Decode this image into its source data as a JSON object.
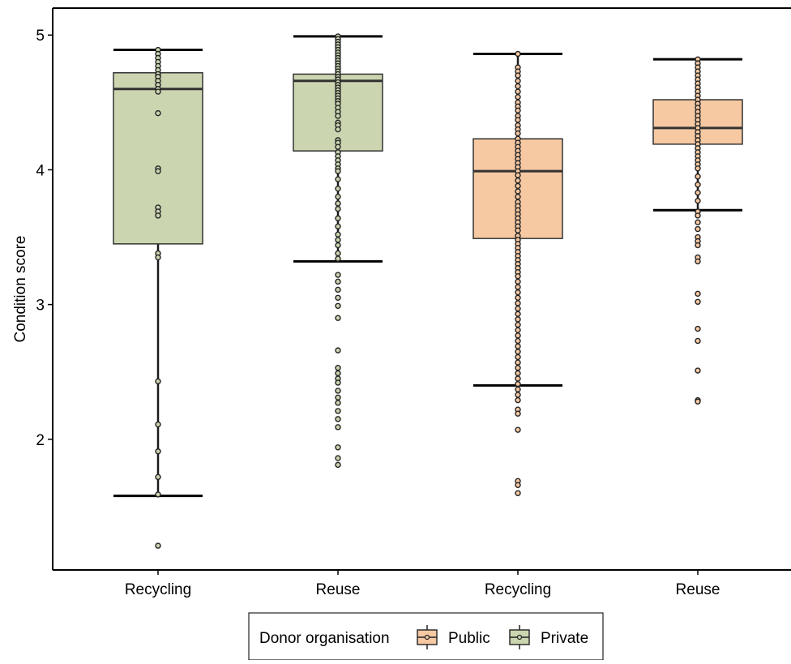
{
  "chart_data": {
    "type": "box",
    "title": "",
    "xlabel": "",
    "ylabel": "Condition score",
    "ylim": [
      1.03,
      5.2
    ],
    "yticks": [
      2,
      3,
      4,
      5
    ],
    "grid": false,
    "legend_position": "bottom",
    "legend_title": "Donor organisation",
    "legend_entries": [
      {
        "label": "Public",
        "color": "#f6c9a3"
      },
      {
        "label": "Private",
        "color": "#cbd6b1"
      }
    ],
    "categories": [
      "Recycling",
      "Reuse",
      "Recycling",
      "Reuse"
    ],
    "boxes": [
      {
        "category": "Recycling",
        "group": "Private",
        "color": "#cbd6b1",
        "whisker_low": 1.58,
        "q1": 3.45,
        "median": 4.6,
        "q3": 4.72,
        "whisker_high": 4.89,
        "points": [
          4.89,
          4.86,
          4.83,
          4.8,
          4.77,
          4.74,
          4.71,
          4.69,
          4.66,
          4.63,
          4.6,
          4.58,
          4.42,
          4.01,
          3.99,
          3.72,
          3.69,
          3.66,
          3.38,
          3.35,
          2.43,
          2.11,
          1.91,
          1.72,
          1.59,
          1.21
        ]
      },
      {
        "category": "Reuse",
        "group": "Private",
        "color": "#cbd6b1",
        "whisker_low": 3.32,
        "q1": 4.14,
        "median": 4.66,
        "q3": 4.71,
        "whisker_high": 4.99,
        "points": [
          4.99,
          4.97,
          4.95,
          4.93,
          4.91,
          4.89,
          4.87,
          4.85,
          4.83,
          4.81,
          4.79,
          4.77,
          4.75,
          4.73,
          4.71,
          4.69,
          4.67,
          4.65,
          4.63,
          4.61,
          4.59,
          4.57,
          4.55,
          4.53,
          4.51,
          4.49,
          4.46,
          4.43,
          4.4,
          4.35,
          4.33,
          4.3,
          4.22,
          4.2,
          4.17,
          4.13,
          4.1,
          4.07,
          4.04,
          4.01,
          3.99,
          3.93,
          3.86,
          3.8,
          3.75,
          3.71,
          3.64,
          3.58,
          3.52,
          3.48,
          3.44,
          3.38,
          3.34,
          3.22,
          3.17,
          3.11,
          3.05,
          2.99,
          2.9,
          2.66,
          2.53,
          2.49,
          2.45,
          2.42,
          2.36,
          2.31,
          2.27,
          2.21,
          2.15,
          2.09,
          1.94,
          1.86,
          1.81
        ]
      },
      {
        "category": "Recycling",
        "group": "Public",
        "color": "#f6c9a3",
        "whisker_low": 2.4,
        "q1": 3.49,
        "median": 3.99,
        "q3": 4.23,
        "whisker_high": 4.86,
        "points": [
          4.86,
          4.76,
          4.73,
          4.7,
          4.66,
          4.62,
          4.58,
          4.54,
          4.5,
          4.47,
          4.44,
          4.4,
          4.37,
          4.33,
          4.3,
          4.27,
          4.23,
          4.2,
          4.17,
          4.14,
          4.11,
          4.08,
          4.05,
          4.02,
          3.99,
          3.96,
          3.92,
          3.88,
          3.84,
          3.8,
          3.76,
          3.73,
          3.7,
          3.67,
          3.64,
          3.61,
          3.58,
          3.55,
          3.51,
          3.48,
          3.45,
          3.42,
          3.39,
          3.36,
          3.33,
          3.3,
          3.27,
          3.24,
          3.21,
          3.17,
          3.13,
          3.09,
          3.05,
          3.01,
          2.97,
          2.93,
          2.89,
          2.85,
          2.81,
          2.77,
          2.73,
          2.69,
          2.65,
          2.61,
          2.57,
          2.53,
          2.49,
          2.45,
          2.41,
          2.37,
          2.33,
          2.29,
          2.22,
          2.19,
          2.07,
          1.69,
          1.66,
          1.6
        ]
      },
      {
        "category": "Reuse",
        "group": "Public",
        "color": "#f6c9a3",
        "whisker_low": 3.7,
        "q1": 4.19,
        "median": 4.31,
        "q3": 4.52,
        "whisker_high": 4.82,
        "points": [
          4.82,
          4.79,
          4.76,
          4.73,
          4.7,
          4.67,
          4.64,
          4.61,
          4.58,
          4.55,
          4.52,
          4.49,
          4.46,
          4.43,
          4.4,
          4.37,
          4.34,
          4.31,
          4.28,
          4.25,
          4.22,
          4.19,
          4.16,
          4.13,
          4.1,
          4.07,
          4.04,
          4.01,
          3.95,
          3.89,
          3.83,
          3.77,
          3.69,
          3.66,
          3.61,
          3.56,
          3.5,
          3.47,
          3.44,
          3.35,
          3.32,
          3.08,
          3.02,
          2.82,
          2.73,
          2.51,
          2.29,
          2.28
        ]
      }
    ]
  }
}
